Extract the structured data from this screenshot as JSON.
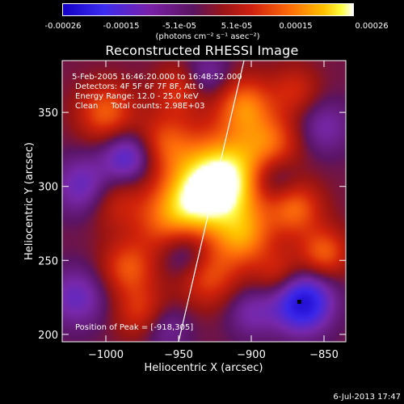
{
  "colorbar": {
    "ticks": [
      "-0.00026",
      "-0.00015",
      "-5.1e-05",
      "5.1e-05",
      "0.00015",
      "0.00026"
    ],
    "units": "(photons cm⁻² s⁻¹ asec⁻²)"
  },
  "title": "Reconstructed RHESSI Image",
  "annotations": {
    "time_range": "5-Feb-2005 16:46:20.000 to 16:48:52.000",
    "detectors": "Detectors: 4F 5F 6F 7F 8F, Att 0",
    "energy": "Energy Range: 12.0 - 25.0 keV",
    "clean": "Clean     Total counts: 2.98E+03",
    "peak": "Position of Peak = [-918,305]"
  },
  "timestamp": "6-Jul-2013 17:47",
  "colors": {
    "background": "#000000",
    "axes": "#ffffff"
  },
  "chart_data": {
    "type": "heatmap",
    "title": "Reconstructed RHESSI Image",
    "xlabel": "Heliocentric X (arcsec)",
    "ylabel": "Heliocentric Y (arcsec)",
    "xlim": [
      -1030,
      -835
    ],
    "ylim": [
      195,
      385
    ],
    "xticks": [
      -1000,
      -950,
      -900,
      -850
    ],
    "yticks": [
      200,
      250,
      300,
      350
    ],
    "xtick_labels": [
      "−1000",
      "−950",
      "−900",
      "−850"
    ],
    "ytick_labels": [
      "200",
      "250",
      "300",
      "350"
    ],
    "zrange": [
      -0.00026,
      0.00026
    ],
    "peak": [
      -918,
      305
    ],
    "marker": [
      -867,
      222
    ],
    "limb_line": [
      [
        -950,
        195
      ],
      [
        -905,
        385
      ]
    ],
    "blobs": [
      {
        "x": -918,
        "y": 305,
        "v": 1.0,
        "s": 22
      },
      {
        "x": -940,
        "y": 290,
        "v": 0.55,
        "s": 18
      },
      {
        "x": -960,
        "y": 275,
        "v": 0.35,
        "s": 16
      },
      {
        "x": -905,
        "y": 355,
        "v": 0.55,
        "s": 14
      },
      {
        "x": -885,
        "y": 330,
        "v": 0.4,
        "s": 14
      },
      {
        "x": -960,
        "y": 330,
        "v": 0.4,
        "s": 14
      },
      {
        "x": -1000,
        "y": 350,
        "v": 0.5,
        "s": 14
      },
      {
        "x": -995,
        "y": 290,
        "v": 0.3,
        "s": 14
      },
      {
        "x": -985,
        "y": 245,
        "v": 0.45,
        "s": 13
      },
      {
        "x": -975,
        "y": 215,
        "v": 0.4,
        "s": 13
      },
      {
        "x": -930,
        "y": 240,
        "v": 0.45,
        "s": 15
      },
      {
        "x": -905,
        "y": 265,
        "v": 0.5,
        "s": 14
      },
      {
        "x": -870,
        "y": 285,
        "v": 0.5,
        "s": 13
      },
      {
        "x": -880,
        "y": 240,
        "v": 0.35,
        "s": 12
      },
      {
        "x": -850,
        "y": 255,
        "v": 0.5,
        "s": 12
      },
      {
        "x": -950,
        "y": 365,
        "v": 0.35,
        "s": 12
      },
      {
        "x": -870,
        "y": 365,
        "v": 0.3,
        "s": 12
      },
      {
        "x": -1015,
        "y": 300,
        "v": -0.45,
        "s": 14
      },
      {
        "x": -1020,
        "y": 225,
        "v": -0.4,
        "s": 14
      },
      {
        "x": -985,
        "y": 320,
        "v": -0.55,
        "s": 12
      },
      {
        "x": -945,
        "y": 255,
        "v": -0.4,
        "s": 12
      },
      {
        "x": -960,
        "y": 205,
        "v": -0.3,
        "s": 12
      },
      {
        "x": -900,
        "y": 215,
        "v": -0.3,
        "s": 12
      },
      {
        "x": -865,
        "y": 222,
        "v": -0.9,
        "s": 14
      },
      {
        "x": -885,
        "y": 305,
        "v": -0.4,
        "s": 12
      },
      {
        "x": -850,
        "y": 340,
        "v": -0.3,
        "s": 13
      },
      {
        "x": -930,
        "y": 375,
        "v": -0.3,
        "s": 11
      }
    ]
  }
}
